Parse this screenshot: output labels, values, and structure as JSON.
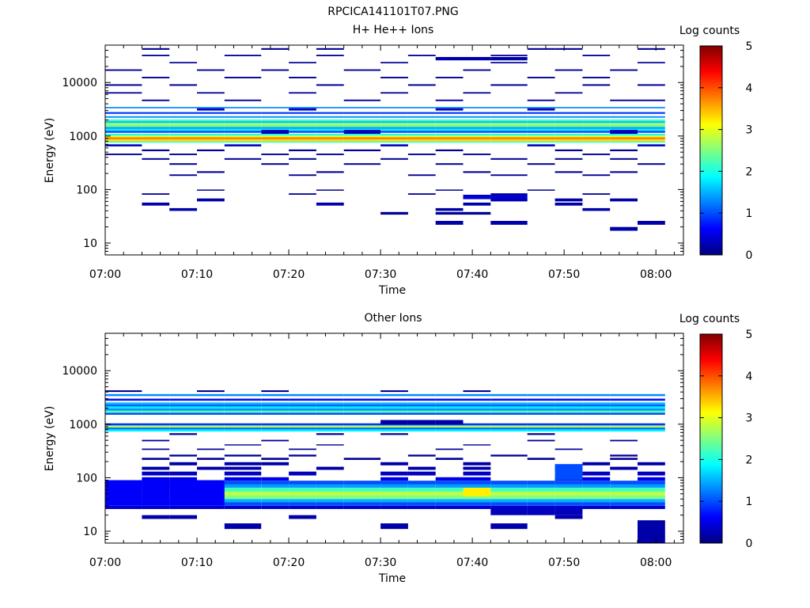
{
  "figure_title": "RPCICA141101T07.PNG",
  "colorscale": {
    "stops": [
      "#000080",
      "#0000ff",
      "#0080ff",
      "#00ffff",
      "#80ff80",
      "#ffff00",
      "#ff8000",
      "#ff0000",
      "#800000"
    ]
  },
  "chart_data": [
    {
      "type": "heatmap",
      "title": "H+ He++ Ions",
      "xlabel": "Time",
      "ylabel": "Energy (eV)",
      "yscale": "log",
      "ylim": [
        6,
        50000
      ],
      "xlim_minutes": [
        0,
        63
      ],
      "x_ticks": [
        {
          "minute": 0,
          "label": "07:00"
        },
        {
          "minute": 10,
          "label": "07:10"
        },
        {
          "minute": 20,
          "label": "07:20"
        },
        {
          "minute": 30,
          "label": "07:30"
        },
        {
          "minute": 40,
          "label": "07:40"
        },
        {
          "minute": 50,
          "label": "07:50"
        },
        {
          "minute": 60,
          "label": "08:00"
        }
      ],
      "y_ticks": [
        {
          "value": 10,
          "label": "10"
        },
        {
          "value": 100,
          "label": "100"
        },
        {
          "value": 1000,
          "label": "1000"
        },
        {
          "value": 10000,
          "label": "10000"
        }
      ],
      "colorbar": {
        "label": "Log counts",
        "range": [
          0,
          5
        ],
        "ticks": [
          "0",
          "1",
          "2",
          "3",
          "4",
          "5"
        ]
      },
      "time_bin_starts_minutes": [
        0,
        4,
        7,
        10,
        13,
        17,
        20,
        23,
        26,
        30,
        33,
        36,
        39,
        42,
        46,
        49,
        52,
        55,
        58
      ],
      "time_bin_end_minutes": 61,
      "cells": [
        {
          "bins": "all",
          "energy": [
            750,
            800
          ],
          "value": 2.2
        },
        {
          "bins": "all",
          "energy": [
            800,
            870
          ],
          "value": 3.3
        },
        {
          "bins": "all",
          "energy": [
            870,
            950
          ],
          "value": 3.8
        },
        {
          "bins": "all",
          "energy": [
            950,
            1020
          ],
          "value": 3.0
        },
        {
          "bins": "all",
          "energy": [
            1020,
            1100
          ],
          "value": 2.0
        },
        {
          "bins": "all",
          "energy": [
            1150,
            1250
          ],
          "value": 0.9
        },
        {
          "bins": "all",
          "energy": [
            1250,
            1360
          ],
          "value": 1.8
        },
        {
          "bins": "all",
          "energy": [
            1360,
            1480
          ],
          "value": 1.4
        },
        {
          "bins": "all",
          "energy": [
            1480,
            1600
          ],
          "value": 2.4
        },
        {
          "bins": "all",
          "energy": [
            1600,
            1750
          ],
          "value": 2.7
        },
        {
          "bins": "all",
          "energy": [
            1750,
            1900
          ],
          "value": 1.6
        },
        {
          "bins": "all",
          "energy": [
            1900,
            2050
          ],
          "value": 2.2
        },
        {
          "bins": "all",
          "energy": [
            2200,
            2350
          ],
          "value": 1.3
        },
        {
          "bins": "all",
          "energy": [
            2600,
            2800
          ],
          "value": 0.9
        },
        {
          "bins": "all",
          "energy": [
            3300,
            3500
          ],
          "value": 1.3
        },
        {
          "bins": [
            0,
            4,
            9,
            14,
            18
          ],
          "energy": [
            640,
            700
          ],
          "value": 0.3
        },
        {
          "bins": [
            1,
            3,
            6,
            8,
            11,
            15,
            17
          ],
          "energy": [
            520,
            560
          ],
          "value": 0.1
        },
        {
          "bins": [
            0,
            2,
            5,
            7,
            10,
            12,
            16
          ],
          "energy": [
            440,
            470
          ],
          "value": 0.1
        },
        {
          "bins": [
            1,
            4,
            6,
            9,
            13,
            15,
            17
          ],
          "energy": [
            360,
            385
          ],
          "value": 0.1
        },
        {
          "bins": [
            2,
            5,
            8,
            11,
            14,
            18
          ],
          "energy": [
            290,
            310
          ],
          "value": 0.1
        },
        {
          "bins": [
            2,
            6,
            10,
            13,
            16
          ],
          "energy": [
            180,
            192
          ],
          "value": 0.1
        },
        {
          "bins": [
            3,
            7,
            12,
            15,
            17
          ],
          "energy": [
            205,
            220
          ],
          "value": 0.1
        },
        {
          "bins": [
            1,
            4,
            8,
            11,
            14,
            17,
            18
          ],
          "energy": [
            4500,
            4800
          ],
          "value": 0.1
        },
        {
          "bins": [
            0,
            3,
            6,
            9,
            12,
            15
          ],
          "energy": [
            6200,
            6600
          ],
          "value": 0.1
        },
        {
          "bins": [
            0,
            2,
            7,
            10,
            13,
            16,
            18
          ],
          "energy": [
            8700,
            9300
          ],
          "value": 0.1
        },
        {
          "bins": [
            1,
            4,
            6,
            9,
            11,
            14,
            16
          ],
          "energy": [
            12000,
            12800
          ],
          "value": 0.1
        },
        {
          "bins": [
            0,
            3,
            5,
            8,
            12,
            15,
            17
          ],
          "energy": [
            16500,
            17600
          ],
          "value": 0.1
        },
        {
          "bins": [
            2,
            6,
            9,
            13,
            18
          ],
          "energy": [
            22800,
            24200
          ],
          "value": 0.1
        },
        {
          "bins": [
            1,
            4,
            7,
            10,
            13,
            16
          ],
          "energy": [
            31000,
            33000
          ],
          "value": 0.1
        },
        {
          "bins": [
            1,
            5,
            7,
            14,
            15,
            18
          ],
          "energy": [
            41000,
            44000
          ],
          "value": 0.1
        },
        {
          "bins": [
            11,
            12,
            13
          ],
          "energy": [
            26000,
            30000
          ],
          "value": 0.2
        },
        {
          "bins": [
            1,
            6,
            10,
            13,
            16
          ],
          "energy": [
            80,
            85
          ],
          "value": 0.1
        },
        {
          "bins": [
            3,
            7,
            11,
            14
          ],
          "energy": [
            95,
            100
          ],
          "value": 0.1
        },
        {
          "bins": [
            1,
            7,
            12,
            15
          ],
          "energy": [
            50,
            57
          ],
          "value": 0.2
        },
        {
          "bins": [
            2,
            11,
            16
          ],
          "energy": [
            40,
            45
          ],
          "value": 0.2
        },
        {
          "bins": [
            3,
            13,
            15,
            17
          ],
          "energy": [
            60,
            68
          ],
          "value": 0.2
        },
        {
          "bins": [
            9,
            11,
            12
          ],
          "energy": [
            34,
            38
          ],
          "value": 0.1
        },
        {
          "bins": [
            11,
            13,
            18
          ],
          "energy": [
            22,
            26
          ],
          "value": 0.2
        },
        {
          "bins": [
            17
          ],
          "energy": [
            17,
            20
          ],
          "value": 0.2
        },
        {
          "bins": [
            12,
            13
          ],
          "energy": [
            66,
            80
          ],
          "value": 0.4
        },
        {
          "bins": [
            5,
            8,
            17
          ],
          "energy": [
            1100,
            1300
          ],
          "value": 0.3
        },
        {
          "bins": [
            3,
            6,
            11,
            14
          ],
          "energy": [
            3000,
            3300
          ],
          "value": 0.3
        }
      ]
    },
    {
      "type": "heatmap",
      "title": "Other Ions",
      "xlabel": "Time",
      "ylabel": "Energy (eV)",
      "yscale": "log",
      "ylim": [
        6,
        50000
      ],
      "xlim_minutes": [
        0,
        63
      ],
      "x_ticks": [
        {
          "minute": 0,
          "label": "07:00"
        },
        {
          "minute": 10,
          "label": "07:10"
        },
        {
          "minute": 20,
          "label": "07:20"
        },
        {
          "minute": 30,
          "label": "07:30"
        },
        {
          "minute": 40,
          "label": "07:40"
        },
        {
          "minute": 50,
          "label": "07:50"
        },
        {
          "minute": 60,
          "label": "08:00"
        }
      ],
      "y_ticks": [
        {
          "value": 10,
          "label": "10"
        },
        {
          "value": 100,
          "label": "100"
        },
        {
          "value": 1000,
          "label": "1000"
        },
        {
          "value": 10000,
          "label": "10000"
        }
      ],
      "colorbar": {
        "label": "Log counts",
        "range": [
          0,
          5
        ],
        "ticks": [
          "0",
          "1",
          "2",
          "3",
          "4",
          "5"
        ]
      },
      "time_bin_starts_minutes": [
        0,
        4,
        7,
        10,
        13,
        17,
        20,
        23,
        26,
        30,
        33,
        36,
        39,
        42,
        46,
        49,
        52,
        55,
        58
      ],
      "time_bin_end_minutes": 61,
      "cells": [
        {
          "bins": "all",
          "energy": [
            730,
            800
          ],
          "value": 1.8
        },
        {
          "bins": "all",
          "energy": [
            800,
            870
          ],
          "value": 1.2
        },
        {
          "bins": "all",
          "energy": [
            870,
            950
          ],
          "value": 2.8
        },
        {
          "bins": "all",
          "energy": [
            950,
            1040
          ],
          "value": 0.9
        },
        {
          "bins": "all",
          "energy": [
            1500,
            1640
          ],
          "value": 1.0
        },
        {
          "bins": "all",
          "energy": [
            1640,
            1800
          ],
          "value": 2.3
        },
        {
          "bins": "all",
          "energy": [
            1800,
            1960
          ],
          "value": 1.3
        },
        {
          "bins": "all",
          "energy": [
            1960,
            2150
          ],
          "value": 1.8
        },
        {
          "bins": "all",
          "energy": [
            2150,
            2350
          ],
          "value": 1.1
        },
        {
          "bins": "all",
          "energy": [
            2350,
            2550
          ],
          "value": 1.5
        },
        {
          "bins": "all",
          "energy": [
            2750,
            3000
          ],
          "value": 0.7
        },
        {
          "bins": "all",
          "energy": [
            3350,
            3650
          ],
          "value": 1.3
        },
        {
          "bins": "all",
          "energy": [
            30,
            35
          ],
          "value": 1.0
        },
        {
          "bins": "all",
          "energy": [
            35,
            40
          ],
          "value": 1.5
        },
        {
          "bins": "all",
          "energy": [
            40,
            47
          ],
          "value": 2.5
        },
        {
          "bins": "all",
          "energy": [
            47,
            55
          ],
          "value": 2.8
        },
        {
          "bins": "all",
          "energy": [
            55,
            65
          ],
          "value": 2.2
        },
        {
          "bins": "all",
          "energy": [
            65,
            75
          ],
          "value": 1.4
        },
        {
          "bins": "all",
          "energy": [
            75,
            88
          ],
          "value": 1.0
        },
        {
          "bins": "all",
          "energy": [
            26,
            30
          ],
          "value": 0.4
        },
        {
          "bins": [
            1,
            2,
            4,
            5,
            9,
            11,
            12,
            15,
            16,
            18
          ],
          "energy": [
            88,
            102
          ],
          "value": 0.5
        },
        {
          "bins": [
            1,
            2,
            4,
            6,
            9,
            10,
            12,
            16,
            18
          ],
          "energy": [
            110,
            130
          ],
          "value": 0.3
        },
        {
          "bins": [
            1,
            3,
            4,
            7,
            10,
            12,
            15,
            17
          ],
          "energy": [
            140,
            160
          ],
          "value": 0.2
        },
        {
          "bins": [
            2,
            4,
            5,
            9,
            12,
            16,
            18
          ],
          "energy": [
            170,
            195
          ],
          "value": 0.2
        },
        {
          "bins": [
            1,
            3,
            5,
            8,
            11,
            14,
            17
          ],
          "energy": [
            215,
            235
          ],
          "value": 0.1
        },
        {
          "bins": [
            2,
            4,
            6,
            10,
            13,
            17
          ],
          "energy": [
            250,
            270
          ],
          "value": 0.1
        },
        {
          "bins": [
            1,
            3,
            6,
            11,
            15
          ],
          "energy": [
            330,
            350
          ],
          "value": 0.1
        },
        {
          "bins": [
            4,
            7,
            12
          ],
          "energy": [
            400,
            420
          ],
          "value": 0.1
        },
        {
          "bins": [
            1,
            5,
            14,
            17
          ],
          "energy": [
            480,
            510
          ],
          "value": 0.1
        },
        {
          "bins": [
            2,
            7,
            9,
            14
          ],
          "energy": [
            630,
            680
          ],
          "value": 0.1
        },
        {
          "bins": [
            0,
            3,
            5,
            9,
            12
          ],
          "energy": [
            4000,
            4300
          ],
          "value": 0.1
        },
        {
          "bins": [
            0,
            1,
            2,
            3
          ],
          "energy": [
            30,
            90
          ],
          "value": 0.6
        },
        {
          "bins": [
            13,
            14,
            15
          ],
          "energy": [
            20,
            27
          ],
          "value": 0.3
        },
        {
          "bins": [
            1,
            2,
            6,
            15
          ],
          "energy": [
            17,
            20
          ],
          "value": 0.2
        },
        {
          "bins": [
            4,
            9,
            13
          ],
          "energy": [
            11,
            14
          ],
          "value": 0.2
        },
        {
          "bins": [
            18
          ],
          "energy": [
            6,
            16
          ],
          "value": 0.2
        },
        {
          "bins": [
            12
          ],
          "energy": [
            45,
            65
          ],
          "value": 3.2
        },
        {
          "bins": [
            15
          ],
          "energy": [
            90,
            180
          ],
          "value": 1.0
        },
        {
          "bins": [
            9,
            10,
            11
          ],
          "energy": [
            1000,
            1200
          ],
          "value": 0.2
        }
      ]
    }
  ]
}
